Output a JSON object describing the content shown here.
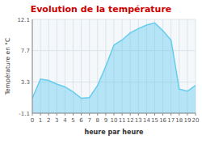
{
  "chart_data": {
    "type": "area",
    "title": "Evolution de la température",
    "x_label": "heure par heure",
    "y_label": "Température en °C",
    "x": [
      0,
      1,
      2,
      3,
      4,
      5,
      6,
      7,
      8,
      9,
      10,
      11,
      12,
      13,
      14,
      15,
      16,
      17,
      18,
      19,
      20
    ],
    "values": [
      1.0,
      3.7,
      3.5,
      3.0,
      2.6,
      1.9,
      1.0,
      1.1,
      2.8,
      5.5,
      8.5,
      9.2,
      10.2,
      10.8,
      11.3,
      11.6,
      10.5,
      9.2,
      2.3,
      2.0,
      2.8
    ],
    "color": "#66ccee",
    "xlim": [
      0,
      20
    ],
    "xticks": [
      0,
      1,
      2,
      3,
      4,
      5,
      6,
      7,
      8,
      9,
      10,
      11,
      12,
      13,
      14,
      15,
      16,
      17,
      18,
      19,
      20
    ],
    "ylim": [
      -1.1,
      12.1
    ],
    "yticks": [
      -1.1,
      3.3,
      7.7,
      12.1
    ],
    "grid": true
  }
}
